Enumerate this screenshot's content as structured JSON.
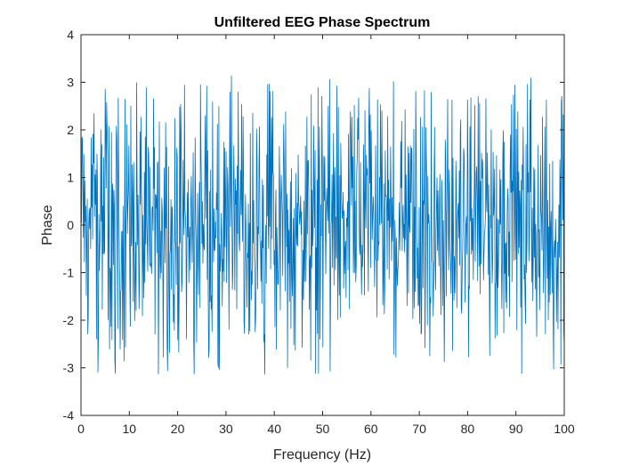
{
  "chart_data": {
    "type": "line",
    "title": "Unfiltered EEG Phase Spectrum",
    "xlabel": "Frequency (Hz)",
    "ylabel": "Phase",
    "xlim": [
      0,
      100
    ],
    "ylim": [
      -4,
      4
    ],
    "x_ticks": [
      "0",
      "10",
      "20",
      "30",
      "40",
      "50",
      "60",
      "70",
      "80",
      "90",
      "100"
    ],
    "y_ticks": [
      "4",
      "3",
      "2",
      "1",
      "0",
      "-1",
      "-2",
      "-3",
      "-4"
    ],
    "grid": false,
    "line_color": "#0072BD",
    "series": [
      {
        "x_start": 0,
        "x_end": 100,
        "num_points": 1000,
        "value_range": [
          -3.14,
          3.14
        ],
        "description_values": "phase values of a noisy spectrum, spread uniformly between -pi and pi"
      }
    ]
  }
}
